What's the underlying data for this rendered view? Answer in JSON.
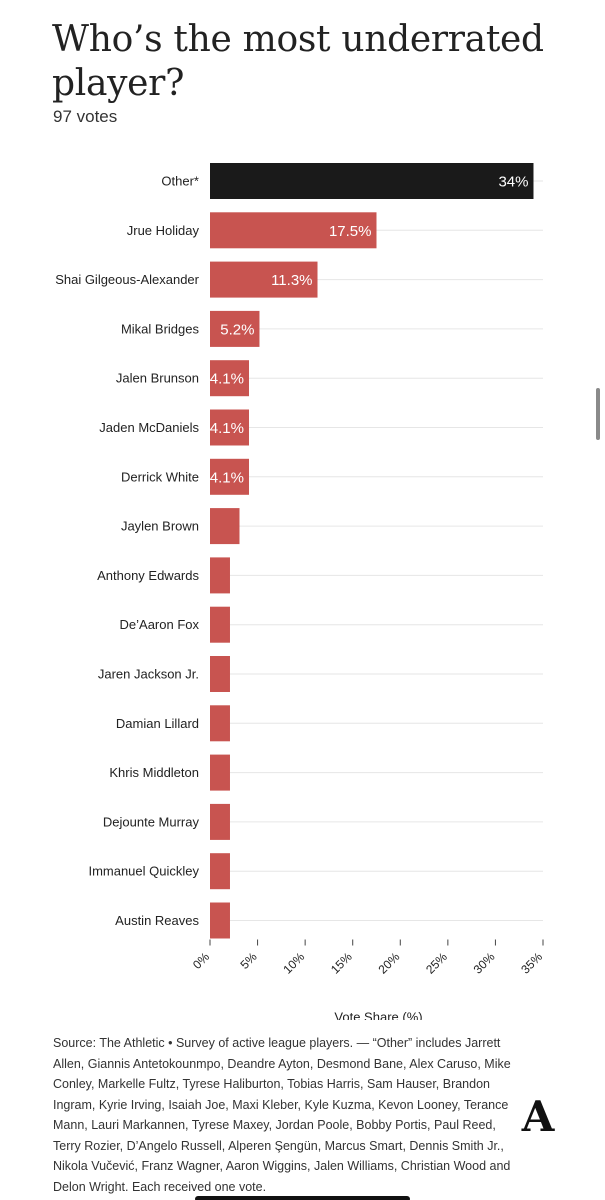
{
  "title": "Who’s the most underrated player?",
  "subtitle": "97 votes",
  "chart_data": {
    "type": "bar",
    "orientation": "horizontal",
    "title": "Who’s the most underrated player?",
    "xlabel": "Vote Share (%)",
    "ylabel": "",
    "xlim": [
      0,
      35
    ],
    "x_ticks": [
      "0%",
      "5%",
      "10%",
      "15%",
      "20%",
      "25%",
      "30%",
      "35%"
    ],
    "grid": true,
    "categories": [
      "Other*",
      "Jrue Holiday",
      "Shai Gilgeous-Alexander",
      "Mikal Bridges",
      "Jalen Brunson",
      "Jaden McDaniels",
      "Derrick White",
      "Jaylen Brown",
      "Anthony Edwards",
      "De’Aaron Fox",
      "Jaren Jackson Jr.",
      "Damian Lillard",
      "Khris Middleton",
      "Dejounte Murray",
      "Immanuel Quickley",
      "Austin Reaves"
    ],
    "values": [
      34,
      17.5,
      11.3,
      5.2,
      4.1,
      4.1,
      4.1,
      3.1,
      2.1,
      2.1,
      2.1,
      2.1,
      2.1,
      2.1,
      2.1,
      2.1
    ],
    "value_labels": [
      "34%",
      "17.5%",
      "11.3%",
      "5.2%",
      "4.1%",
      "4.1%",
      "4.1%",
      "",
      "",
      "",
      "",
      "",
      "",
      "",
      "",
      ""
    ],
    "colors": {
      "highlight": "#1a1a1a",
      "bar": "#c85450",
      "grid": "#e6e6e6"
    }
  },
  "source": "Source: The Athletic • Survey of active league players. — “Other” includes Jarrett Allen, Giannis Antetokounmpo, Deandre Ayton, Desmond Bane, Alex Caruso, Mike Conley, Markelle Fultz, Tyrese Haliburton, Tobias Harris, Sam Hauser, Brandon Ingram, Kyrie Irving, Isaiah Joe, Maxi Kleber, Kyle Kuzma, Kevon Looney, Terance Mann, Lauri Markannen, Tyrese Maxey, Jordan Poole, Bobby Portis, Paul Reed, Terry Rozier, D’Angelo Russell, Alperen Şengün, Marcus Smart, Dennis Smith Jr., Nikola Vučević, Franz Wagner, Aaron Wiggins, Jalen Williams, Christian Wood and Delon Wright. Each received one vote.",
  "logo_letter": "A"
}
